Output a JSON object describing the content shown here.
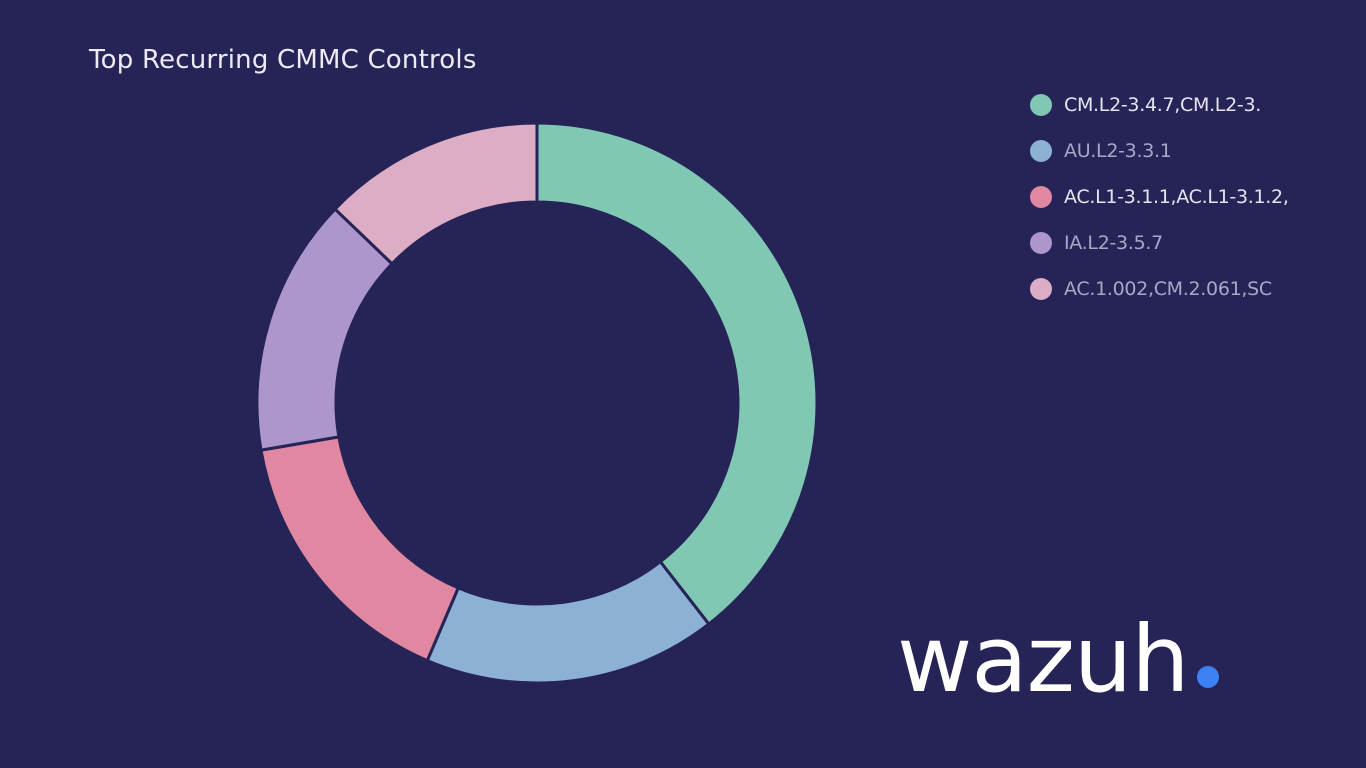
{
  "chart_data": {
    "type": "pie",
    "title": "Top Recurring CMMC Controls",
    "donut": true,
    "legend_position": "top-right",
    "slices": [
      {
        "label": "CM.L2-3.4.7,CM.L2-3.",
        "value": 38.5,
        "color": "#80C8B3"
      },
      {
        "label": "AU.L2-3.3.1",
        "value": 16.5,
        "color": "#8CB1D5"
      },
      {
        "label": "AC.L1-3.1.1,AC.L1-3.1.2,",
        "value": 15.5,
        "color": "#E088A2"
      },
      {
        "label": "IA.L2-3.5.7",
        "value": 14.5,
        "color": "#AD96CC"
      },
      {
        "label": "AC.1.002,CM.2.061,SC",
        "value": 12.5,
        "color": "#DDADC5"
      }
    ]
  },
  "legend_colors": {
    "text_primary": "#E6E4EF",
    "text_faded": "#A9A7C7"
  },
  "brand": {
    "word": "wazuh",
    "dot_color": "#3D82F5"
  }
}
